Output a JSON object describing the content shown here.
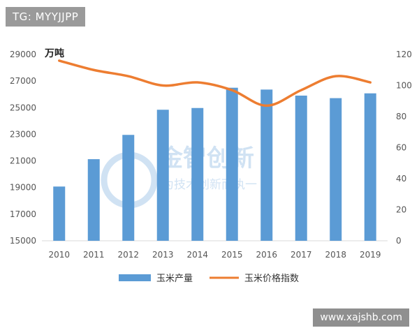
{
  "tag_badge": "TG: MYYJJPP",
  "watermark": {
    "brand": "金智创新",
    "slogan": "为技术创新而执一",
    "site": "www.xajshb.com"
  },
  "colors": {
    "bar": "#5b9bd5",
    "line": "#ed7d31",
    "axis": "#d9d9d9"
  },
  "chart_data": {
    "type": "bar",
    "categories": [
      "2010",
      "2011",
      "2012",
      "2013",
      "2014",
      "2015",
      "2016",
      "2017",
      "2018",
      "2019"
    ],
    "series": [
      {
        "name": "玉米产量",
        "type": "bar",
        "axis": "left",
        "values": [
          19075,
          21131,
          22956,
          24845,
          24976,
          26499,
          26361,
          25907,
          25717,
          26077
        ]
      },
      {
        "name": "玉米价格指数",
        "type": "line",
        "axis": "right",
        "values": [
          116,
          110,
          106,
          100,
          102,
          97,
          87,
          97,
          106,
          102
        ]
      }
    ],
    "unit_label": "万吨",
    "y_left": {
      "min": 15000,
      "max": 29000,
      "ticks": [
        "15000",
        "17000",
        "19000",
        "21000",
        "23000",
        "25000",
        "27000",
        "29000"
      ]
    },
    "y_right": {
      "min": 0,
      "max": 120,
      "ticks": [
        "0",
        "20",
        "40",
        "60",
        "80",
        "100",
        "120"
      ]
    },
    "legend_position": "bottom",
    "grid": false
  }
}
